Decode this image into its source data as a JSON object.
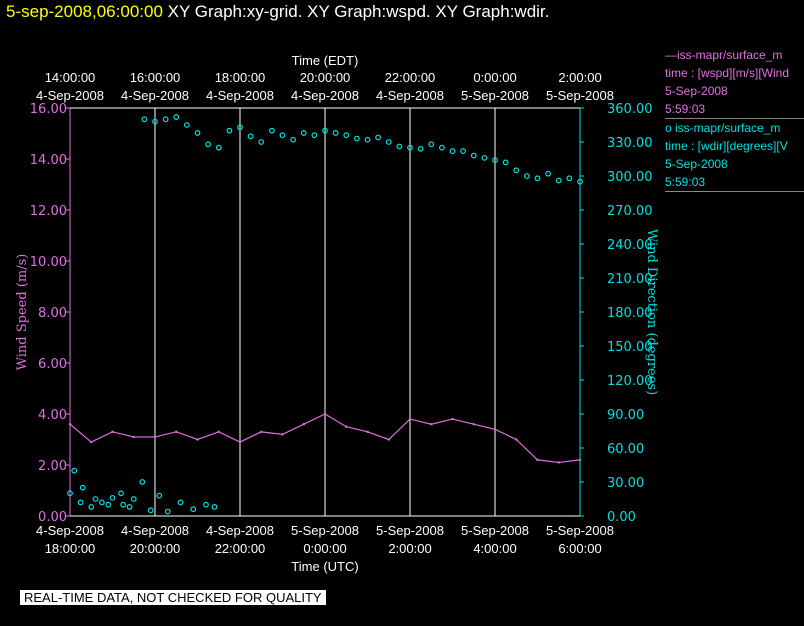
{
  "header": {
    "timestamp": "5-sep-2008,06:00:00",
    "graphs": "XY Graph:xy-grid.  XY Graph:wspd.  XY Graph:wdir."
  },
  "legend": [
    {
      "line1": "—iss-mapr/surface_m",
      "line2": "time : [wspd][m/s][Wind",
      "line3": "5-Sep-2008",
      "line4": "5:59:03"
    },
    {
      "line1": "o iss-mapr/surface_m",
      "line2": "time : [wdir][degrees][V",
      "line3": "5-Sep-2008",
      "line4": "5:59:03"
    }
  ],
  "footer": {
    "qc_note": "REAL-TIME DATA, NOT CHECKED FOR QUALITY"
  },
  "colors": {
    "background": "#000000",
    "wspd": "#e070e0",
    "wdir": "#00e0e0",
    "header_timestamp": "#ffff00",
    "grid": "#ffffff"
  },
  "chart_data": {
    "type": "line",
    "xlabel_top": "Time (EDT)",
    "xlabel_bottom": "Time (UTC)",
    "ylabel_left": "Wind Speed (m/s)",
    "ylabel_right": "Wind Direction (degrees)",
    "x_range_hours_utc": [
      18,
      30
    ],
    "ylim_left": [
      0,
      16
    ],
    "ylim_right": [
      0,
      360
    ],
    "grid": "vertical",
    "x_ticks_top": [
      {
        "date": "4-Sep-2008",
        "time": "14:00:00"
      },
      {
        "date": "4-Sep-2008",
        "time": "16:00:00"
      },
      {
        "date": "4-Sep-2008",
        "time": "18:00:00"
      },
      {
        "date": "4-Sep-2008",
        "time": "20:00:00"
      },
      {
        "date": "4-Sep-2008",
        "time": "22:00:00"
      },
      {
        "date": "5-Sep-2008",
        "time": "0:00:00"
      },
      {
        "date": "5-Sep-2008",
        "time": "2:00:00"
      }
    ],
    "x_ticks_bottom": [
      {
        "date": "4-Sep-2008",
        "time": "18:00:00"
      },
      {
        "date": "4-Sep-2008",
        "time": "20:00:00"
      },
      {
        "date": "4-Sep-2008",
        "time": "22:00:00"
      },
      {
        "date": "5-Sep-2008",
        "time": "0:00:00"
      },
      {
        "date": "5-Sep-2008",
        "time": "2:00:00"
      },
      {
        "date": "5-Sep-2008",
        "time": "4:00:00"
      },
      {
        "date": "5-Sep-2008",
        "time": "6:00:00"
      }
    ],
    "y_ticks_left": [
      "0.00",
      "2.00",
      "4.00",
      "6.00",
      "8.00",
      "10.00",
      "12.00",
      "14.00",
      "16.00"
    ],
    "y_ticks_right": [
      "0.00",
      "30.00",
      "60.00",
      "90.00",
      "120.00",
      "150.00",
      "180.00",
      "210.00",
      "240.00",
      "270.00",
      "300.00",
      "330.00",
      "360.00"
    ],
    "series": [
      {
        "key": "wspd",
        "style": "line",
        "x_hours_utc": [
          18.0,
          18.5,
          19.0,
          19.5,
          20.0,
          20.5,
          21.0,
          21.5,
          22.0,
          22.5,
          23.0,
          23.5,
          24.0,
          24.5,
          25.0,
          25.5,
          26.0,
          26.5,
          27.0,
          27.5,
          28.0,
          28.5,
          29.0,
          29.5,
          30.0
        ],
        "values": [
          3.6,
          2.9,
          3.3,
          3.1,
          3.1,
          3.3,
          3.0,
          3.3,
          2.9,
          3.3,
          3.2,
          3.6,
          4.0,
          3.5,
          3.3,
          3.0,
          3.8,
          3.6,
          3.8,
          3.6,
          3.4,
          3.0,
          2.2,
          2.1,
          2.2
        ]
      },
      {
        "key": "wdir",
        "style": "scatter",
        "x_hours_utc": [
          18.0,
          18.25,
          18.5,
          18.75,
          19.0,
          19.25,
          19.5,
          19.75,
          20.0,
          20.25,
          20.5,
          20.75,
          21.0,
          21.25,
          21.5,
          21.75,
          22.0,
          22.25,
          22.5,
          22.75,
          23.0,
          23.25,
          23.5,
          23.75,
          24.0,
          24.25,
          24.5,
          24.75,
          25.0,
          25.25,
          25.5,
          25.75,
          26.0,
          26.25,
          26.5,
          26.75,
          27.0,
          27.25,
          27.5,
          27.75,
          28.0,
          28.25,
          28.5,
          28.75,
          29.0,
          29.25,
          29.5,
          29.75,
          30.0
        ],
        "values": [
          20,
          12,
          8,
          12,
          16,
          10,
          15,
          350,
          348,
          350,
          352,
          345,
          338,
          328,
          325,
          340,
          343,
          335,
          330,
          340,
          336,
          332,
          338,
          336,
          340,
          338,
          336,
          333,
          332,
          334,
          330,
          326,
          325,
          324,
          328,
          325,
          322,
          322,
          318,
          316,
          314,
          312,
          305,
          300,
          298,
          302,
          296,
          298,
          295
        ]
      },
      {
        "key": "wdir_low",
        "style": "scatter",
        "x_hours_utc": [
          18.1,
          18.3,
          18.6,
          18.9,
          19.2,
          19.4,
          19.7,
          19.9,
          20.1,
          20.3,
          20.6,
          20.9,
          21.2,
          21.4
        ],
        "values": [
          40,
          25,
          15,
          10,
          20,
          8,
          30,
          5,
          18,
          4,
          12,
          6,
          10,
          8
        ]
      }
    ]
  }
}
